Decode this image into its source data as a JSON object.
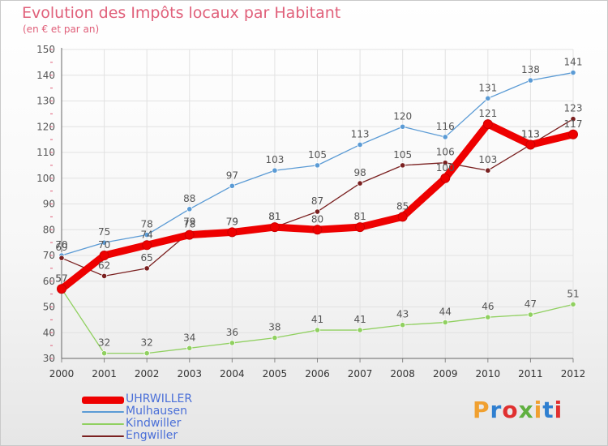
{
  "title": "Evolution des Impôts locaux par Habitant",
  "subtitle": "(en € et par an)",
  "logo_text": "Proxiti",
  "logo_colors": [
    "#f0a030",
    "#2f7fd0",
    "#e03030",
    "#60b040",
    "#f0a030",
    "#2f7fd0",
    "#e03030"
  ],
  "chart_data": {
    "type": "line",
    "x": [
      "2000",
      "2001",
      "2002",
      "2003",
      "2004",
      "2005",
      "2006",
      "2007",
      "2008",
      "2009",
      "2010",
      "2011",
      "2012"
    ],
    "ylim": [
      30,
      150
    ],
    "yticks": [
      "30",
      "40",
      "50",
      "60",
      "70",
      "80",
      "90",
      "100",
      "110",
      "120",
      "130",
      "140",
      "150"
    ],
    "grid": true,
    "legend_position": "bottom-left",
    "series": [
      {
        "name": "UHRWILLER",
        "color": "#ee0000",
        "values": [
          57,
          70,
          74,
          78,
          79,
          81,
          80,
          81,
          85,
          100,
          121,
          113,
          117
        ],
        "labels": [
          "57",
          "70",
          "74",
          "78",
          "79",
          "81",
          "80",
          "81",
          "85",
          "100",
          "121",
          "113",
          "117"
        ]
      },
      {
        "name": "Mulhausen",
        "color": "#5b9bd5",
        "values": [
          70,
          75,
          78,
          88,
          97,
          103,
          105,
          113,
          120,
          116,
          131,
          138,
          141
        ],
        "labels": [
          "70",
          "75",
          "78",
          "88",
          "97",
          "103",
          "105",
          "113",
          "120",
          "116",
          "131",
          "138",
          "141"
        ]
      },
      {
        "name": "Kindwiller",
        "color": "#90d060",
        "values": [
          57,
          32,
          32,
          34,
          36,
          38,
          41,
          41,
          43,
          44,
          46,
          47,
          51
        ],
        "labels": [
          "57",
          "32",
          "32",
          "34",
          "36",
          "38",
          "41",
          "41",
          "43",
          "44",
          "46",
          "47",
          "51"
        ]
      },
      {
        "name": "Engwiller",
        "color": "#7a2020",
        "values": [
          69,
          62,
          65,
          79,
          79,
          81,
          87,
          98,
          105,
          106,
          103,
          113,
          123
        ],
        "labels": [
          "69",
          "62",
          "65",
          "79",
          "79",
          "81",
          "87",
          "98",
          "105",
          "106",
          "103",
          "113",
          "123"
        ]
      }
    ]
  }
}
